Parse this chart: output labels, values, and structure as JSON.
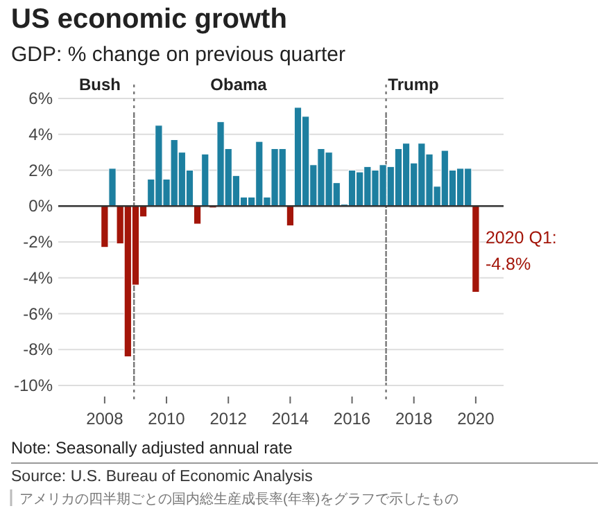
{
  "chart_data": {
    "type": "bar",
    "title": "US economic growth",
    "subtitle": "GDP: % change on previous quarter",
    "x": [
      2008,
      2008.25,
      2008.5,
      2008.75,
      2009,
      2009.25,
      2009.5,
      2009.75,
      2010,
      2010.25,
      2010.5,
      2010.75,
      2011,
      2011.25,
      2011.5,
      2011.75,
      2012,
      2012.25,
      2012.5,
      2012.75,
      2013,
      2013.25,
      2013.5,
      2013.75,
      2014,
      2014.25,
      2014.5,
      2014.75,
      2015,
      2015.25,
      2015.5,
      2015.75,
      2016,
      2016.25,
      2016.5,
      2016.75,
      2017,
      2017.25,
      2017.5,
      2017.75,
      2018,
      2018.25,
      2018.5,
      2018.75,
      2019,
      2019.25,
      2019.5,
      2019.75,
      2020
    ],
    "values": [
      -2.3,
      2.1,
      -2.1,
      -8.4,
      -4.4,
      -0.6,
      1.5,
      4.5,
      1.5,
      3.7,
      3.0,
      2.0,
      -1.0,
      2.9,
      -0.1,
      4.7,
      3.2,
      1.7,
      0.5,
      0.5,
      3.6,
      0.5,
      3.2,
      3.2,
      -1.1,
      5.5,
      5.0,
      2.3,
      3.2,
      3.0,
      1.3,
      0.1,
      2.0,
      1.9,
      2.2,
      2.0,
      2.3,
      2.2,
      3.2,
      3.5,
      2.4,
      3.5,
      2.9,
      1.1,
      3.1,
      2.0,
      2.1,
      2.1,
      -4.8
    ],
    "colors": [
      "#a31509",
      "#1d7fa0",
      "#a31509",
      "#a31509",
      "#a31509",
      "#a31509",
      "#1d7fa0",
      "#1d7fa0",
      "#1d7fa0",
      "#1d7fa0",
      "#1d7fa0",
      "#1d7fa0",
      "#a31509",
      "#1d7fa0",
      "#a31509",
      "#1d7fa0",
      "#1d7fa0",
      "#1d7fa0",
      "#1d7fa0",
      "#1d7fa0",
      "#1d7fa0",
      "#1d7fa0",
      "#1d7fa0",
      "#1d7fa0",
      "#a31509",
      "#1d7fa0",
      "#1d7fa0",
      "#1d7fa0",
      "#1d7fa0",
      "#1d7fa0",
      "#1d7fa0",
      "#1d7fa0",
      "#1d7fa0",
      "#1d7fa0",
      "#1d7fa0",
      "#1d7fa0",
      "#1d7fa0",
      "#1d7fa0",
      "#1d7fa0",
      "#1d7fa0",
      "#1d7fa0",
      "#1d7fa0",
      "#1d7fa0",
      "#1d7fa0",
      "#1d7fa0",
      "#1d7fa0",
      "#1d7fa0",
      "#1d7fa0",
      "#a31509"
    ],
    "xlim": [
      2006.5,
      2020.9
    ],
    "ylim": [
      -10,
      6
    ],
    "xticks": [
      2008,
      2010,
      2012,
      2014,
      2016,
      2018,
      2020
    ],
    "yticks": [
      {
        "value": 6,
        "label": "6%"
      },
      {
        "value": 4,
        "label": "4%"
      },
      {
        "value": 2,
        "label": "2%"
      },
      {
        "value": 0,
        "label": "0%"
      },
      {
        "value": -2,
        "label": "-2%"
      },
      {
        "value": -4,
        "label": "-4%"
      },
      {
        "value": -6,
        "label": "-6%"
      },
      {
        "value": -8,
        "label": "-8%"
      },
      {
        "value": -10,
        "label": "-10%"
      }
    ],
    "grid": "y",
    "ref_lines": [
      {
        "axis": "x",
        "value": 2008.95,
        "line_style": "dotted",
        "color": "#777777"
      },
      {
        "axis": "x",
        "value": 2017.1,
        "line_style": "dotted",
        "color": "#777777"
      }
    ],
    "annotations": [
      "Bush",
      "Obama",
      "Trump",
      {
        "text": "2020 Q1:\n-4.8%",
        "x": 2020,
        "y": -4.8
      },
      "Note: Seasonally adjusted annual rate",
      "Source: U.S. Bureau of Economic Analysis",
      "アメリカの四半期ごとの国内総生産成長率(年率)をグラフで示したもの"
    ]
  }
}
